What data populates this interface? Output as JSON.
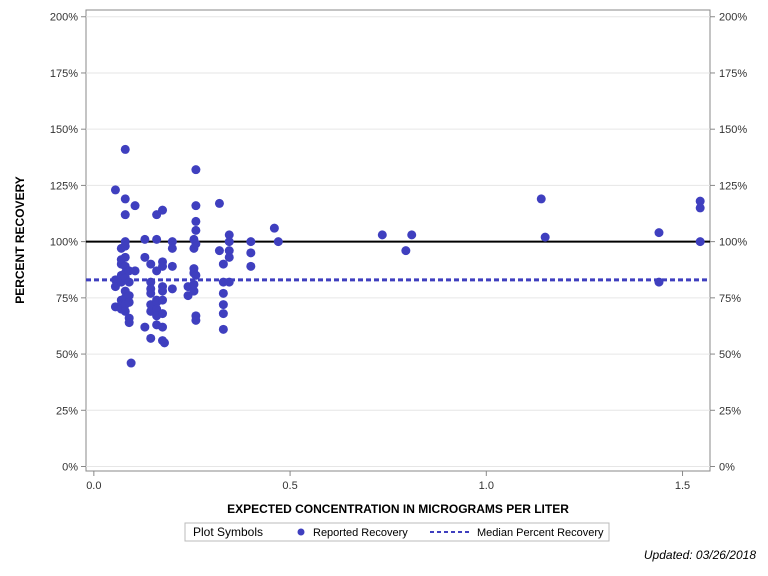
{
  "colors": {
    "points": "#3f3fbf",
    "reference": "#000000",
    "median": "#3f3fbf",
    "grid": "#e6e6e6",
    "frame": "#888888"
  },
  "chart_data": {
    "type": "scatter",
    "xlabel": "EXPECTED CONCENTRATION IN MICROGRAMS PER LITER",
    "ylabel": "PERCENT RECOVERY",
    "xlim": [
      -0.02,
      1.57
    ],
    "ylim": [
      -2,
      203
    ],
    "xticks": [
      0,
      0.5,
      1,
      1.5
    ],
    "xtick_labels": [
      "0.0",
      "0.5",
      "1.0",
      "1.5"
    ],
    "yticks": [
      0,
      25,
      50,
      75,
      100,
      125,
      150,
      175,
      200
    ],
    "ytick_labels": [
      "0%",
      "25%",
      "50%",
      "75%",
      "100%",
      "125%",
      "150%",
      "175%",
      "200%"
    ],
    "reference_line": 100,
    "median_line": 83,
    "legend": {
      "title": "Plot Symbols",
      "items": [
        "Reported Recovery",
        "Median Percent Recovery"
      ]
    },
    "series": [
      {
        "name": "Reported Recovery",
        "points": [
          [
            0.055,
            123
          ],
          [
            0.055,
            83
          ],
          [
            0.055,
            80
          ],
          [
            0.055,
            71
          ],
          [
            0.07,
            97
          ],
          [
            0.07,
            92
          ],
          [
            0.07,
            90
          ],
          [
            0.07,
            85
          ],
          [
            0.07,
            82
          ],
          [
            0.07,
            74
          ],
          [
            0.07,
            72
          ],
          [
            0.07,
            70
          ],
          [
            0.08,
            141
          ],
          [
            0.08,
            119
          ],
          [
            0.08,
            112
          ],
          [
            0.08,
            100
          ],
          [
            0.08,
            98
          ],
          [
            0.08,
            93
          ],
          [
            0.08,
            89
          ],
          [
            0.08,
            86
          ],
          [
            0.08,
            84
          ],
          [
            0.08,
            78
          ],
          [
            0.08,
            75
          ],
          [
            0.08,
            72
          ],
          [
            0.08,
            69
          ],
          [
            0.09,
            87
          ],
          [
            0.09,
            82
          ],
          [
            0.09,
            76
          ],
          [
            0.09,
            73
          ],
          [
            0.09,
            66
          ],
          [
            0.09,
            64
          ],
          [
            0.095,
            46
          ],
          [
            0.105,
            116
          ],
          [
            0.105,
            87
          ],
          [
            0.13,
            101
          ],
          [
            0.13,
            93
          ],
          [
            0.13,
            62
          ],
          [
            0.145,
            90
          ],
          [
            0.145,
            82
          ],
          [
            0.145,
            79
          ],
          [
            0.145,
            77
          ],
          [
            0.145,
            72
          ],
          [
            0.145,
            69
          ],
          [
            0.145,
            57
          ],
          [
            0.16,
            112
          ],
          [
            0.16,
            101
          ],
          [
            0.16,
            87
          ],
          [
            0.16,
            74
          ],
          [
            0.16,
            73
          ],
          [
            0.16,
            70
          ],
          [
            0.16,
            67
          ],
          [
            0.16,
            63
          ],
          [
            0.175,
            114
          ],
          [
            0.175,
            91
          ],
          [
            0.175,
            89
          ],
          [
            0.175,
            80
          ],
          [
            0.175,
            78
          ],
          [
            0.175,
            74
          ],
          [
            0.175,
            68
          ],
          [
            0.175,
            62
          ],
          [
            0.175,
            56
          ],
          [
            0.18,
            55
          ],
          [
            0.2,
            100
          ],
          [
            0.2,
            97
          ],
          [
            0.2,
            89
          ],
          [
            0.2,
            79
          ],
          [
            0.24,
            80
          ],
          [
            0.24,
            76
          ],
          [
            0.255,
            101
          ],
          [
            0.255,
            97
          ],
          [
            0.255,
            88
          ],
          [
            0.255,
            86
          ],
          [
            0.255,
            81
          ],
          [
            0.255,
            78
          ],
          [
            0.26,
            132
          ],
          [
            0.26,
            116
          ],
          [
            0.26,
            109
          ],
          [
            0.26,
            105
          ],
          [
            0.26,
            99
          ],
          [
            0.26,
            85
          ],
          [
            0.26,
            67
          ],
          [
            0.26,
            65
          ],
          [
            0.32,
            117
          ],
          [
            0.32,
            96
          ],
          [
            0.33,
            90
          ],
          [
            0.33,
            82
          ],
          [
            0.33,
            77
          ],
          [
            0.33,
            72
          ],
          [
            0.33,
            68
          ],
          [
            0.33,
            61
          ],
          [
            0.345,
            103
          ],
          [
            0.345,
            100
          ],
          [
            0.345,
            96
          ],
          [
            0.345,
            93
          ],
          [
            0.345,
            82
          ],
          [
            0.4,
            100
          ],
          [
            0.4,
            95
          ],
          [
            0.4,
            89
          ],
          [
            0.46,
            106
          ],
          [
            0.47,
            100
          ],
          [
            0.735,
            103
          ],
          [
            0.795,
            96
          ],
          [
            0.81,
            103
          ],
          [
            1.14,
            119
          ],
          [
            1.15,
            102
          ],
          [
            1.44,
            104
          ],
          [
            1.44,
            82
          ],
          [
            1.545,
            118
          ],
          [
            1.545,
            115
          ],
          [
            1.545,
            100
          ]
        ]
      }
    ]
  },
  "footer": {
    "updated": "Updated: 03/26/2018"
  }
}
